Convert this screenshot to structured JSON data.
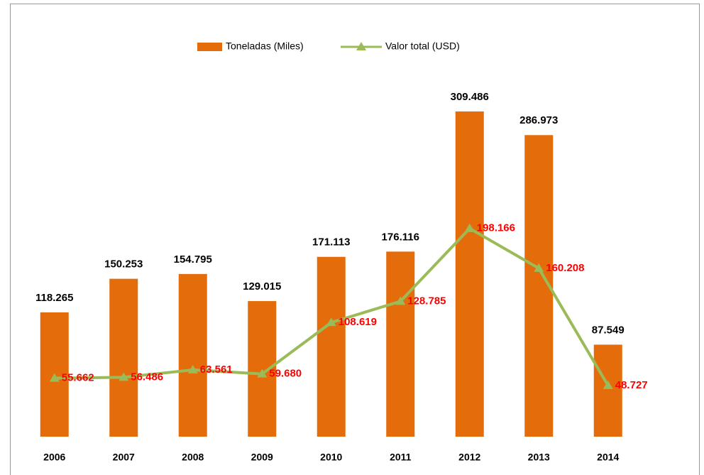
{
  "chart_data": {
    "type": "bar_line",
    "categories": [
      "2006",
      "2007",
      "2008",
      "2009",
      "2010",
      "2011",
      "2012",
      "2013",
      "2014"
    ],
    "series": [
      {
        "name": "Toneladas (Miles)",
        "type": "bar",
        "color": "#e46c0a",
        "values": [
          118.265,
          150.253,
          154.795,
          129.015,
          171.113,
          176.116,
          309.486,
          286.973,
          87.549
        ]
      },
      {
        "name": "Valor total (USD)",
        "type": "line",
        "color": "#9bbb59",
        "values": [
          55.662,
          56.486,
          63.561,
          59.68,
          108.619,
          128.785,
          198.166,
          160.208,
          48.727
        ],
        "value_labels": [
          "55.662",
          "56.486",
          "63.561",
          "59.680",
          "108.619",
          "128.785",
          "198.166",
          "160.208",
          "48.727"
        ]
      }
    ],
    "ylim": [
      0,
      320
    ],
    "legend": "top"
  }
}
